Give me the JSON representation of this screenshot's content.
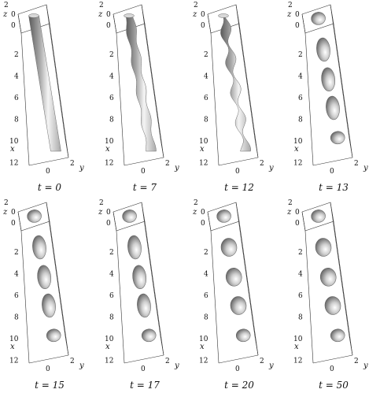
{
  "figure": {
    "panels": [
      {
        "t_label": "t = 0",
        "var": "t",
        "value": "0",
        "shape": "tube",
        "neck": 0.0
      },
      {
        "t_label": "t = 7",
        "var": "t",
        "value": "7",
        "shape": "tube",
        "neck": 0.35
      },
      {
        "t_label": "t = 12",
        "var": "t",
        "value": "12",
        "shape": "tube",
        "neck": 0.85
      },
      {
        "t_label": "t = 13",
        "var": "t",
        "value": "13",
        "shape": "drops"
      },
      {
        "t_label": "t = 15",
        "var": "t",
        "value": "15",
        "shape": "drops"
      },
      {
        "t_label": "t = 17",
        "var": "t",
        "value": "17",
        "shape": "drops"
      },
      {
        "t_label": "t = 20",
        "var": "t",
        "value": "20",
        "shape": "drops"
      },
      {
        "t_label": "t = 50",
        "var": "t",
        "value": "50",
        "shape": "drops"
      }
    ],
    "axes": {
      "x_label": "x",
      "y_label": "y",
      "z_label": "z",
      "x_ticks": [
        "2",
        "4",
        "6",
        "8",
        "10",
        "12"
      ],
      "y_ticks": [
        "0",
        "2"
      ],
      "z_ticks": [
        "2",
        "0"
      ],
      "x_origin_tick": "0"
    },
    "colors": {
      "surface_light": "#f4f4f4",
      "surface_mid": "#a9a9a9",
      "surface_dark": "#5a5a5a",
      "box_line": "#333333"
    }
  }
}
